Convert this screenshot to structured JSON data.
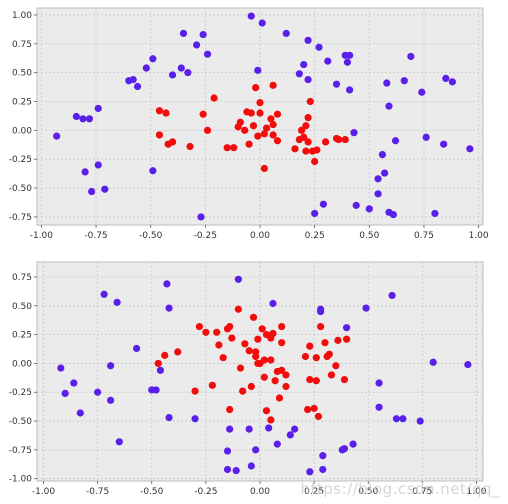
{
  "chart_data": [
    {
      "type": "scatter",
      "xlim": [
        -1.02,
        1.02
      ],
      "ylim": [
        -0.82,
        1.06
      ],
      "xticks": [
        "-1.00",
        "-0.75",
        "-0.50",
        "-0.25",
        "0.00",
        "0.25",
        "0.50",
        "0.75",
        "1.00"
      ],
      "xtick_values": [
        -1.0,
        -0.75,
        -0.5,
        -0.25,
        0.0,
        0.25,
        0.5,
        0.75,
        1.0
      ],
      "yticks": [
        "-0.75",
        "-0.50",
        "-0.25",
        "0.00",
        "0.25",
        "0.50",
        "0.75",
        "1.00"
      ],
      "ytick_values": [
        -0.75,
        -0.5,
        -0.25,
        0.0,
        0.25,
        0.5,
        0.75,
        1.0
      ],
      "grid": true,
      "series": [
        {
          "color": "#5a1fe8",
          "points": [
            [
              -0.93,
              -0.05
            ],
            [
              -0.84,
              0.12
            ],
            [
              -0.81,
              0.1
            ],
            [
              -0.78,
              0.1
            ],
            [
              -0.74,
              0.19
            ],
            [
              -0.8,
              -0.36
            ],
            [
              -0.77,
              -0.53
            ],
            [
              -0.74,
              -0.3
            ],
            [
              -0.71,
              -0.51
            ],
            [
              -0.6,
              0.43
            ],
            [
              -0.58,
              0.44
            ],
            [
              -0.56,
              0.38
            ],
            [
              -0.52,
              0.54
            ],
            [
              -0.49,
              0.62
            ],
            [
              -0.49,
              -0.35
            ],
            [
              -0.4,
              0.48
            ],
            [
              -0.36,
              0.54
            ],
            [
              -0.35,
              0.84
            ],
            [
              -0.33,
              0.5
            ],
            [
              -0.29,
              0.74
            ],
            [
              -0.26,
              0.83
            ],
            [
              -0.24,
              0.66
            ],
            [
              -0.27,
              -0.75
            ],
            [
              -0.04,
              0.99
            ],
            [
              0.01,
              0.93
            ],
            [
              -0.01,
              0.52
            ],
            [
              0.12,
              0.84
            ],
            [
              0.18,
              0.49
            ],
            [
              0.2,
              0.57
            ],
            [
              0.22,
              0.78
            ],
            [
              0.22,
              0.44
            ],
            [
              0.27,
              0.72
            ],
            [
              0.31,
              0.6
            ],
            [
              0.35,
              0.4
            ],
            [
              0.39,
              0.65
            ],
            [
              0.4,
              0.59
            ],
            [
              0.41,
              0.65
            ],
            [
              0.41,
              0.35
            ],
            [
              0.43,
              -0.02
            ],
            [
              0.44,
              -0.65
            ],
            [
              0.25,
              -0.72
            ],
            [
              0.29,
              -0.64
            ],
            [
              0.5,
              -0.68
            ],
            [
              0.54,
              -0.42
            ],
            [
              0.54,
              -0.55
            ],
            [
              0.56,
              -0.21
            ],
            [
              0.57,
              -0.37
            ],
            [
              0.58,
              0.41
            ],
            [
              0.59,
              0.21
            ],
            [
              0.59,
              -0.71
            ],
            [
              0.61,
              -0.73
            ],
            [
              0.62,
              -0.09
            ],
            [
              0.66,
              0.43
            ],
            [
              0.69,
              0.64
            ],
            [
              0.74,
              0.33
            ],
            [
              0.76,
              -0.06
            ],
            [
              0.8,
              -0.72
            ],
            [
              0.84,
              -0.12
            ],
            [
              0.85,
              0.45
            ],
            [
              0.88,
              0.42
            ],
            [
              0.96,
              -0.16
            ]
          ]
        },
        {
          "color": "#f20c0c",
          "points": [
            [
              -0.46,
              0.17
            ],
            [
              -0.43,
              0.15
            ],
            [
              -0.46,
              -0.04
            ],
            [
              -0.42,
              -0.12
            ],
            [
              -0.4,
              -0.1
            ],
            [
              -0.32,
              -0.14
            ],
            [
              -0.26,
              0.14
            ],
            [
              -0.24,
              0.0
            ],
            [
              -0.21,
              0.28
            ],
            [
              -0.15,
              -0.15
            ],
            [
              -0.12,
              -0.15
            ],
            [
              -0.1,
              0.03
            ],
            [
              -0.09,
              0.07
            ],
            [
              -0.07,
              0.0
            ],
            [
              -0.06,
              0.16
            ],
            [
              -0.05,
              -0.12
            ],
            [
              -0.04,
              0.15
            ],
            [
              -0.03,
              0.04
            ],
            [
              -0.02,
              0.37
            ],
            [
              -0.01,
              -0.05
            ],
            [
              0.0,
              0.15
            ],
            [
              0.02,
              -0.03
            ],
            [
              0.03,
              0.02
            ],
            [
              0.05,
              0.1
            ],
            [
              0.06,
              0.05
            ],
            [
              0.06,
              -0.04
            ],
            [
              0.08,
              -0.09
            ],
            [
              0.08,
              0.14
            ],
            [
              0.06,
              0.39
            ],
            [
              0.0,
              0.24
            ],
            [
              0.02,
              -0.33
            ],
            [
              0.16,
              -0.16
            ],
            [
              0.18,
              -0.08
            ],
            [
              0.19,
              0.0
            ],
            [
              0.2,
              -0.06
            ],
            [
              0.21,
              0.04
            ],
            [
              0.21,
              -0.18
            ],
            [
              0.22,
              0.11
            ],
            [
              0.22,
              -0.1
            ],
            [
              0.23,
              0.25
            ],
            [
              0.24,
              -0.18
            ],
            [
              0.25,
              -0.27
            ],
            [
              0.26,
              -0.17
            ],
            [
              0.35,
              -0.07
            ],
            [
              0.39,
              -0.08
            ],
            [
              0.36,
              -0.08
            ],
            [
              0.3,
              -0.1
            ]
          ]
        }
      ]
    },
    {
      "type": "scatter",
      "xlim": [
        -1.03,
        1.03
      ],
      "ylim": [
        -1.02,
        0.88
      ],
      "xticks": [
        "-1.00",
        "-0.75",
        "-0.50",
        "-0.25",
        "0.00",
        "0.25",
        "0.50",
        "0.75",
        "1.00"
      ],
      "xtick_values": [
        -1.0,
        -0.75,
        -0.5,
        -0.25,
        0.0,
        0.25,
        0.5,
        0.75,
        1.0
      ],
      "yticks": [
        "-1.00",
        "-0.75",
        "-0.50",
        "-0.25",
        "0.00",
        "0.25",
        "0.50",
        "0.75"
      ],
      "ytick_values": [
        -1.0,
        -0.75,
        -0.5,
        -0.25,
        0.0,
        0.25,
        0.5,
        0.75
      ],
      "grid": true,
      "series": [
        {
          "color": "#5a1fe8",
          "points": [
            [
              -0.92,
              -0.04
            ],
            [
              -0.9,
              -0.26
            ],
            [
              -0.86,
              -0.17
            ],
            [
              -0.83,
              -0.43
            ],
            [
              -0.75,
              -0.25
            ],
            [
              -0.72,
              0.6
            ],
            [
              -0.69,
              -0.02
            ],
            [
              -0.69,
              -0.32
            ],
            [
              -0.66,
              0.53
            ],
            [
              -0.65,
              -0.68
            ],
            [
              -0.57,
              0.13
            ],
            [
              -0.5,
              -0.23
            ],
            [
              -0.48,
              -0.23
            ],
            [
              -0.46,
              -0.06
            ],
            [
              -0.43,
              0.69
            ],
            [
              -0.42,
              0.48
            ],
            [
              -0.42,
              -0.47
            ],
            [
              -0.3,
              -0.48
            ],
            [
              -0.14,
              -0.57
            ],
            [
              -0.15,
              -0.76
            ],
            [
              -0.15,
              -0.92
            ],
            [
              -0.11,
              -0.93
            ],
            [
              -0.1,
              0.73
            ],
            [
              -0.05,
              -0.57
            ],
            [
              -0.04,
              -0.89
            ],
            [
              -0.02,
              -0.75
            ],
            [
              0.04,
              -0.56
            ],
            [
              0.06,
              0.52
            ],
            [
              0.08,
              -0.7
            ],
            [
              0.14,
              -0.62
            ],
            [
              0.16,
              -0.57
            ],
            [
              0.23,
              -0.94
            ],
            [
              0.28,
              0.47
            ],
            [
              0.28,
              0.45
            ],
            [
              0.29,
              -0.8
            ],
            [
              0.29,
              -0.92
            ],
            [
              0.38,
              -0.75
            ],
            [
              0.39,
              -0.74
            ],
            [
              0.4,
              0.31
            ],
            [
              0.43,
              -0.7
            ],
            [
              0.49,
              0.48
            ],
            [
              0.55,
              -0.17
            ],
            [
              0.55,
              -0.38
            ],
            [
              0.61,
              0.59
            ],
            [
              0.63,
              -0.48
            ],
            [
              0.66,
              -0.48
            ],
            [
              0.74,
              -0.5
            ],
            [
              0.8,
              0.01
            ],
            [
              0.96,
              -0.01
            ]
          ]
        },
        {
          "color": "#f20c0c",
          "points": [
            [
              -0.47,
              0.0
            ],
            [
              -0.44,
              0.07
            ],
            [
              -0.38,
              0.1
            ],
            [
              -0.3,
              -0.24
            ],
            [
              -0.28,
              0.32
            ],
            [
              -0.25,
              0.27
            ],
            [
              -0.22,
              -0.19
            ],
            [
              -0.2,
              0.27
            ],
            [
              -0.19,
              0.16
            ],
            [
              -0.17,
              0.05
            ],
            [
              -0.15,
              0.3
            ],
            [
              -0.14,
              0.32
            ],
            [
              -0.13,
              0.22
            ],
            [
              -0.1,
              0.47
            ],
            [
              -0.09,
              -0.04
            ],
            [
              -0.08,
              -0.24
            ],
            [
              -0.07,
              0.17
            ],
            [
              -0.05,
              0.11
            ],
            [
              -0.04,
              -0.2
            ],
            [
              -0.03,
              0.4
            ],
            [
              -0.02,
              0.1
            ],
            [
              -0.01,
              0.21
            ],
            [
              -0.02,
              0.06
            ],
            [
              -0.01,
              0.0
            ],
            [
              0.0,
              0.0
            ],
            [
              0.01,
              0.3
            ],
            [
              0.02,
              -0.12
            ],
            [
              0.03,
              0.25
            ],
            [
              0.03,
              -0.41
            ],
            [
              0.05,
              0.22
            ],
            [
              0.05,
              0.03
            ],
            [
              0.06,
              0.26
            ],
            [
              0.07,
              -0.15
            ],
            [
              0.08,
              -0.07
            ],
            [
              0.09,
              -0.3
            ],
            [
              0.1,
              0.32
            ],
            [
              0.1,
              0.18
            ],
            [
              0.1,
              -0.06
            ],
            [
              0.12,
              -0.2
            ],
            [
              0.12,
              -0.1
            ],
            [
              0.05,
              -0.49
            ],
            [
              -0.14,
              -0.4
            ],
            [
              0.02,
              0.03
            ],
            [
              0.21,
              0.06
            ],
            [
              0.23,
              0.15
            ],
            [
              0.23,
              -0.14
            ],
            [
              0.26,
              0.05
            ],
            [
              0.26,
              -0.15
            ],
            [
              0.25,
              -0.39
            ],
            [
              0.28,
              0.32
            ],
            [
              0.3,
              0.18
            ],
            [
              0.31,
              0.06
            ],
            [
              0.32,
              0.08
            ],
            [
              0.33,
              -0.1
            ],
            [
              0.35,
              -0.02
            ],
            [
              0.36,
              0.2
            ],
            [
              0.39,
              -0.14
            ],
            [
              0.4,
              0.21
            ],
            [
              0.27,
              -0.46
            ],
            [
              0.22,
              -0.4
            ]
          ]
        }
      ]
    }
  ],
  "watermark": "https://blog.csdn.net/qq_"
}
